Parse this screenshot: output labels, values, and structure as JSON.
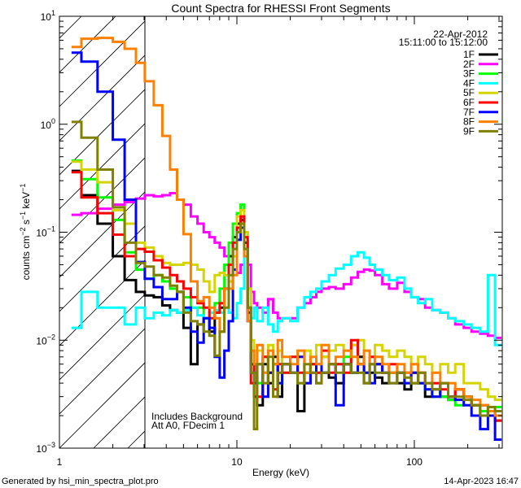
{
  "chart_data": {
    "type": "line",
    "style": "histogram-step",
    "title": "Count Spectra for RHESSI Front Segments",
    "xlabel": "Energy (keV)",
    "ylabel": "counts cm^-2 s^-1 keV^-1",
    "xscale": "log",
    "yscale": "log",
    "xlim": [
      1,
      313
    ],
    "ylim": [
      0.001,
      10
    ],
    "x_tick_labels": [
      "1",
      "10",
      "100"
    ],
    "date": "22-Apr-2012",
    "time_range": "15:11:00 to 15:12:00",
    "legend_placement": "top-right",
    "annotations": [
      "Includes Background",
      "Att A0, FDecim 1"
    ],
    "hatched_region_keV": [
      1,
      3.03
    ],
    "energy_edges": [
      1.17,
      1.33,
      1.64,
      2.0,
      2.33,
      2.7,
      3.03,
      3.4,
      3.8,
      4.2,
      4.6,
      5.0,
      5.5,
      6.0,
      6.5,
      7.0,
      7.5,
      8.0,
      8.5,
      9.0,
      9.5,
      10.0,
      10.5,
      11.0,
      11.5,
      12.0,
      12.5,
      13,
      14,
      15,
      16,
      17,
      18,
      20,
      22,
      24,
      26,
      28,
      30,
      33,
      36,
      40,
      44,
      48,
      52,
      56,
      60,
      66,
      72,
      80,
      88,
      96,
      105,
      115,
      126,
      140,
      155,
      170,
      190,
      210,
      235,
      260,
      285,
      310
    ],
    "series": [
      {
        "name": "1F",
        "color": "#000000",
        "values": [
          0.37,
          0.22,
          0.12,
          0.06,
          0.036,
          0.028,
          0.026,
          0.025,
          0.021,
          0.019,
          0.018,
          0.013,
          0.006,
          0.014,
          0.016,
          0.012,
          0.018,
          0.02,
          0.03,
          0.06,
          0.09,
          0.12,
          0.13,
          0.08,
          0.018,
          0.006,
          0.003,
          0.0025,
          0.006,
          0.004,
          0.007,
          0.003,
          0.006,
          0.005,
          0.0022,
          0.005,
          0.006,
          0.004,
          0.005,
          0.0045,
          0.004,
          0.006,
          0.005,
          0.007,
          0.004,
          0.005,
          0.0045,
          0.004,
          0.005,
          0.004,
          0.0035,
          0.005,
          0.004,
          0.003,
          0.0035,
          0.003,
          0.0028,
          0.0035,
          0.003,
          0.0025,
          0.002,
          0.0022,
          0.0018
        ]
      },
      {
        "name": "2F",
        "color": "#ff00ff",
        "values": [
          0.145,
          0.15,
          0.165,
          0.18,
          0.19,
          0.205,
          0.22,
          0.215,
          0.22,
          0.23,
          0.2,
          0.18,
          0.14,
          0.12,
          0.1,
          0.09,
          0.08,
          0.072,
          0.06,
          0.05,
          0.045,
          0.042,
          0.05,
          0.06,
          0.05,
          0.028,
          0.022,
          0.02,
          0.018,
          0.024,
          0.018,
          0.016,
          0.016,
          0.016,
          0.02,
          0.022,
          0.025,
          0.028,
          0.03,
          0.031,
          0.03,
          0.033,
          0.038,
          0.043,
          0.045,
          0.044,
          0.04,
          0.033,
          0.03,
          0.034,
          0.028,
          0.025,
          0.024,
          0.02,
          0.019,
          0.018,
          0.016,
          0.014,
          0.013,
          0.012,
          0.0115,
          0.011,
          0.0105
        ]
      },
      {
        "name": "3F",
        "color": "#00ff00",
        "values": [
          0.46,
          0.31,
          0.21,
          0.13,
          0.065,
          0.045,
          0.037,
          0.04,
          0.035,
          0.03,
          0.028,
          0.025,
          0.02,
          0.02,
          0.016,
          0.018,
          0.022,
          0.03,
          0.05,
          0.08,
          0.12,
          0.15,
          0.18,
          0.1,
          0.02,
          0.008,
          0.005,
          0.004,
          0.007,
          0.005,
          0.006,
          0.004,
          0.005,
          0.007,
          0.004,
          0.005,
          0.006,
          0.005,
          0.007,
          0.006,
          0.006,
          0.007,
          0.005,
          0.006,
          0.005,
          0.006,
          0.006,
          0.005,
          0.005,
          0.005,
          0.004,
          0.004,
          0.004,
          0.0035,
          0.003,
          0.003,
          0.0028,
          0.0025,
          0.003,
          0.0025,
          0.0022,
          0.002,
          0.0024
        ]
      },
      {
        "name": "4F",
        "color": "#00ffff",
        "values": [
          0.013,
          0.028,
          0.02,
          0.02,
          0.014,
          0.02,
          0.016,
          0.018,
          0.017,
          0.019,
          0.018,
          0.019,
          0.02,
          0.017,
          0.016,
          0.018,
          0.019,
          0.018,
          0.02,
          0.018,
          0.016,
          0.022,
          0.03,
          0.06,
          0.03,
          0.016,
          0.02,
          0.015,
          0.02,
          0.014,
          0.012,
          0.015,
          0.016,
          0.015,
          0.02,
          0.025,
          0.028,
          0.03,
          0.035,
          0.04,
          0.046,
          0.05,
          0.06,
          0.065,
          0.058,
          0.05,
          0.045,
          0.04,
          0.036,
          0.038,
          0.03,
          0.025,
          0.022,
          0.024,
          0.019,
          0.018,
          0.016,
          0.015,
          0.014,
          0.013,
          0.012,
          0.04,
          0.009
        ]
      },
      {
        "name": "5F",
        "color": "#d4d400",
        "values": [
          0.45,
          0.38,
          0.29,
          0.16,
          0.12,
          0.08,
          0.072,
          0.06,
          0.052,
          0.05,
          0.05,
          0.052,
          0.05,
          0.045,
          0.035,
          0.028,
          0.04,
          0.042,
          0.04,
          0.035,
          0.06,
          0.14,
          0.16,
          0.1,
          0.03,
          0.01,
          0.006,
          0.008,
          0.005,
          0.009,
          0.006,
          0.008,
          0.006,
          0.005,
          0.007,
          0.008,
          0.006,
          0.009,
          0.007,
          0.008,
          0.009,
          0.008,
          0.009,
          0.01,
          0.008,
          0.007,
          0.009,
          0.008,
          0.007,
          0.008,
          0.007,
          0.006,
          0.007,
          0.006,
          0.005,
          0.006,
          0.005,
          0.006,
          0.004,
          0.004,
          0.0035,
          0.003,
          0.0028
        ]
      },
      {
        "name": "6F",
        "color": "#ff0000",
        "values": [
          0.36,
          0.21,
          0.15,
          0.095,
          0.06,
          0.07,
          0.066,
          0.055,
          0.047,
          0.04,
          0.035,
          0.03,
          0.025,
          0.022,
          0.02,
          0.016,
          0.018,
          0.022,
          0.03,
          0.05,
          0.08,
          0.11,
          0.14,
          0.09,
          0.02,
          0.004,
          0.006,
          0.003,
          0.007,
          0.005,
          0.0035,
          0.006,
          0.005,
          0.007,
          0.005,
          0.004,
          0.006,
          0.005,
          0.008,
          0.005,
          0.006,
          0.005,
          0.01,
          0.006,
          0.005,
          0.007,
          0.006,
          0.005,
          0.006,
          0.005,
          0.005,
          0.004,
          0.005,
          0.004,
          0.004,
          0.0035,
          0.003,
          0.0035,
          0.003,
          0.0025,
          0.0025,
          0.002,
          0.0018
        ]
      },
      {
        "name": "7F",
        "color": "#0000ff",
        "values": [
          4.6,
          3.8,
          2.0,
          0.72,
          0.2,
          0.053,
          0.037,
          0.031,
          0.024,
          0.024,
          0.028,
          0.02,
          0.012,
          0.0095,
          0.016,
          0.013,
          0.007,
          0.0045,
          0.008,
          0.015,
          0.045,
          0.085,
          0.11,
          0.06,
          0.015,
          0.005,
          0.004,
          0.006,
          0.003,
          0.005,
          0.006,
          0.004,
          0.006,
          0.005,
          0.007,
          0.004,
          0.005,
          0.006,
          0.005,
          0.006,
          0.0025,
          0.006,
          0.005,
          0.006,
          0.005,
          0.004,
          0.006,
          0.005,
          0.004,
          0.005,
          0.004,
          0.005,
          0.004,
          0.0035,
          0.003,
          0.004,
          0.003,
          0.0028,
          0.0025,
          0.002,
          0.0015,
          0.002,
          0.0012
        ]
      },
      {
        "name": "8F",
        "color": "#ff8000",
        "values": [
          5.2,
          6.2,
          6.3,
          5.8,
          5.0,
          3.7,
          2.5,
          1.5,
          0.78,
          0.38,
          0.2,
          0.096,
          0.035,
          0.023,
          0.025,
          0.02,
          0.016,
          0.012,
          0.03,
          0.03,
          0.04,
          0.1,
          0.12,
          0.06,
          0.015,
          0.008,
          0.006,
          0.009,
          0.005,
          0.008,
          0.006,
          0.01,
          0.007,
          0.006,
          0.008,
          0.005,
          0.007,
          0.006,
          0.009,
          0.006,
          0.007,
          0.008,
          0.007,
          0.006,
          0.008,
          0.006,
          0.007,
          0.006,
          0.005,
          0.006,
          0.005,
          0.006,
          0.005,
          0.004,
          0.005,
          0.004,
          0.004,
          0.0035,
          0.003,
          0.0028,
          0.0025,
          0.0022,
          0.002
        ]
      },
      {
        "name": "9F",
        "color": "#808000",
        "values": [
          1.05,
          0.75,
          0.38,
          0.17,
          0.08,
          0.052,
          0.048,
          0.04,
          0.038,
          0.032,
          0.028,
          0.018,
          0.015,
          0.014,
          0.012,
          0.011,
          0.0072,
          0.012,
          0.02,
          0.04,
          0.07,
          0.1,
          0.12,
          0.07,
          0.02,
          0.005,
          0.0015,
          0.006,
          0.004,
          0.007,
          0.003,
          0.005,
          0.006,
          0.005,
          0.004,
          0.006,
          0.005,
          0.004,
          0.005,
          0.006,
          0.005,
          0.006,
          0.005,
          0.005,
          0.004,
          0.006,
          0.005,
          0.005,
          0.004,
          0.005,
          0.0045,
          0.004,
          0.005,
          0.004,
          0.0035,
          0.004,
          0.003,
          0.003,
          0.0028,
          0.0025,
          0.002,
          0.0024,
          0.0022
        ]
      }
    ]
  },
  "footer": {
    "generated_by": "Generated by hsi_min_spectra_plot.pro",
    "timestamp": "14-Apr-2023 16:47"
  }
}
